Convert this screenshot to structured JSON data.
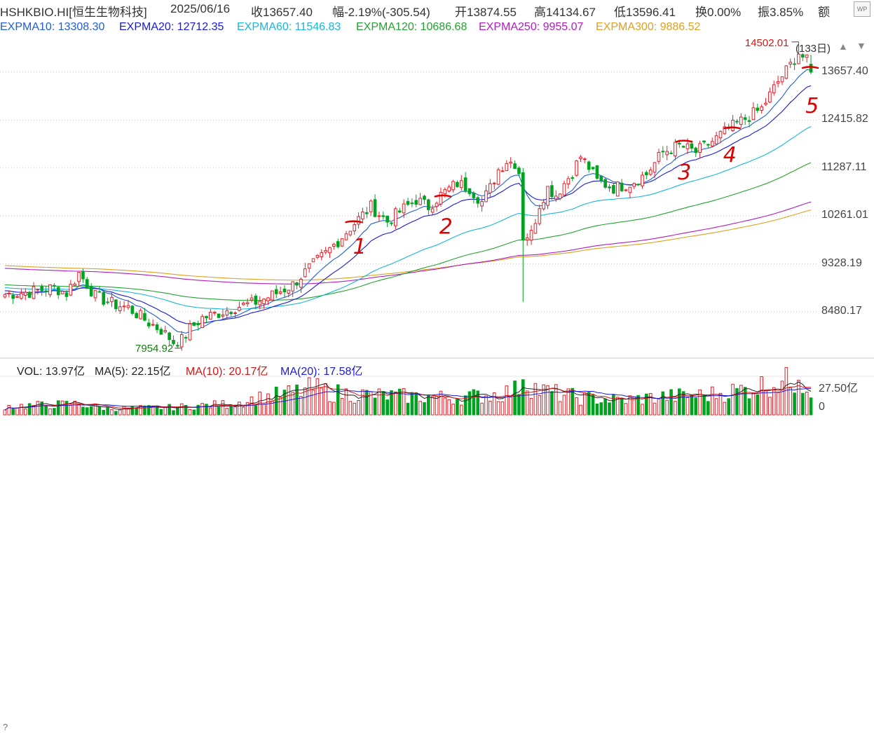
{
  "header": {
    "symbol": "HSHKBIO.HI[恒生生物科技]",
    "date": "2025/06/16",
    "close": "收13657.40",
    "change": "幅-2.19%(-305.54)",
    "open": "开13874.55",
    "high": "高14134.67",
    "low": "低13596.41",
    "turnover": "换0.00%",
    "amplitude": "振3.85%",
    "amount": "额"
  },
  "ema_bar": {
    "items": [
      {
        "label": "EXPMA10: 13308.30",
        "color": "#1f5fd6"
      },
      {
        "label": "EXPMA20: 12712.35",
        "color": "#1a1ad6"
      },
      {
        "label": "EXPMA60: 11546.83",
        "color": "#19b7d8"
      },
      {
        "label": "EXPMA120: 10686.68",
        "color": "#22a331"
      },
      {
        "label": "EXPMA250: 9955.07",
        "color": "#b01ec0"
      },
      {
        "label": "EXPMA300: 9886.52",
        "color": "#e0a020"
      }
    ],
    "period": "(133日)"
  },
  "volume_bar": {
    "vol": "VOL: 13.97亿",
    "ma5": "MA(5): 22.15亿",
    "ma10": "MA(10): 20.17亿",
    "ma20": "MA(20): 17.58亿"
  },
  "chart_data": {
    "type": "candlestick",
    "title": "HSHKBIO.HI[恒生生物科技]",
    "y_ticks": [
      "13657.40",
      "12415.82",
      "11287.11",
      "10261.01",
      "9328.19",
      "8480.17"
    ],
    "y_tick_values": [
      13657.4,
      12415.82,
      11287.11,
      10261.01,
      9328.19,
      8480.17
    ],
    "y_range": [
      7800,
      14600
    ],
    "y_scale": "log",
    "period_count": 133,
    "annotations": {
      "max": "14502.01",
      "min": "7954.92"
    },
    "handwritten_marks": [
      "1",
      "2",
      "3",
      "4",
      "5"
    ],
    "volume_axis_labels": [
      "27.50亿",
      "0"
    ],
    "series_colors": {
      "up": "#e0202a",
      "down": "#00a320"
    },
    "last_bar": {
      "date": "2025/06/16",
      "open": 13874.55,
      "high": 14134.67,
      "low": 13596.41,
      "close": 13657.4
    },
    "ema_last": {
      "EXPMA10": 13308.3,
      "EXPMA20": 12712.35,
      "EXPMA60": 11546.83,
      "EXPMA120": 10686.68,
      "EXPMA250": 9955.07,
      "EXPMA300": 9886.52
    },
    "close_waypoints": [
      [
        0,
        8780
      ],
      [
        6,
        8820
      ],
      [
        12,
        8900
      ],
      [
        15,
        8800
      ],
      [
        18,
        9160
      ],
      [
        22,
        8750
      ],
      [
        27,
        8600
      ],
      [
        30,
        8550
      ],
      [
        35,
        8300
      ],
      [
        38,
        8180
      ],
      [
        41,
        7990
      ],
      [
        43,
        8020
      ],
      [
        45,
        8200
      ],
      [
        48,
        8380
      ],
      [
        52,
        8460
      ],
      [
        56,
        8560
      ],
      [
        60,
        8620
      ],
      [
        63,
        8700
      ],
      [
        66,
        8800
      ],
      [
        70,
        8950
      ],
      [
        74,
        9250
      ],
      [
        78,
        9520
      ],
      [
        82,
        9850
      ],
      [
        86,
        10200
      ],
      [
        89,
        10450
      ],
      [
        93,
        10150
      ],
      [
        96,
        10350
      ],
      [
        100,
        10600
      ],
      [
        103,
        10450
      ],
      [
        106,
        10700
      ],
      [
        110,
        10950
      ],
      [
        113,
        10850
      ],
      [
        116,
        10550
      ],
      [
        118,
        10850
      ],
      [
        120,
        11250
      ],
      [
        122,
        11450
      ],
      [
        124,
        11400
      ],
      [
        125,
        11200
      ],
      [
        126,
        9850
      ],
      [
        128,
        9900
      ],
      [
        130,
        10500
      ],
      [
        132,
        10850
      ],
      [
        134,
        10700
      ],
      [
        136,
        10950
      ],
      [
        138,
        11200
      ],
      [
        140,
        11550
      ],
      [
        142,
        11300
      ],
      [
        144,
        11000
      ],
      [
        148,
        10850
      ],
      [
        152,
        10950
      ],
      [
        156,
        11150
      ],
      [
        160,
        11650
      ],
      [
        164,
        11800
      ],
      [
        168,
        11650
      ],
      [
        172,
        11900
      ],
      [
        176,
        12200
      ],
      [
        180,
        12450
      ],
      [
        184,
        12700
      ],
      [
        188,
        13400
      ],
      [
        191,
        13850
      ],
      [
        193,
        14200
      ],
      [
        195,
        13963
      ],
      [
        196,
        13657.4
      ]
    ],
    "volume_waypoints": [
      [
        0,
        7
      ],
      [
        18,
        9
      ],
      [
        25,
        5
      ],
      [
        40,
        6
      ],
      [
        55,
        9
      ],
      [
        62,
        14
      ],
      [
        70,
        18
      ],
      [
        75,
        22
      ],
      [
        80,
        18
      ],
      [
        90,
        16
      ],
      [
        100,
        15
      ],
      [
        110,
        14
      ],
      [
        120,
        17
      ],
      [
        124,
        20
      ],
      [
        126,
        29
      ],
      [
        130,
        20
      ],
      [
        140,
        14
      ],
      [
        150,
        12
      ],
      [
        160,
        15
      ],
      [
        170,
        16
      ],
      [
        180,
        21
      ],
      [
        188,
        27
      ],
      [
        193,
        28
      ],
      [
        195,
        26
      ],
      [
        196,
        14
      ]
    ],
    "volume_max": 30
  }
}
